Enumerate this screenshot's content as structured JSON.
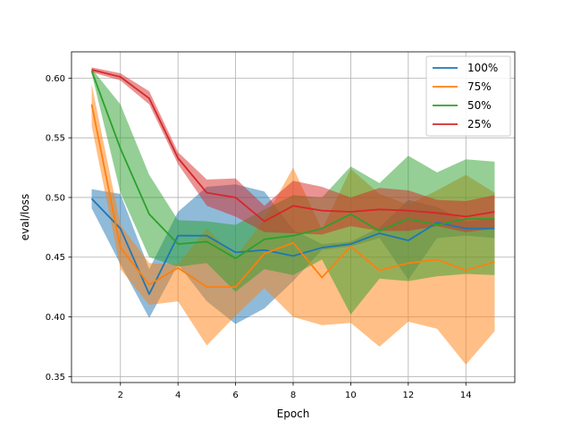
{
  "chart_data": {
    "type": "line",
    "title": "",
    "xlabel": "Epoch",
    "ylabel": "eval/loss",
    "xlim": [
      0.3,
      15.7
    ],
    "ylim": [
      0.345,
      0.622
    ],
    "xticks": [
      2,
      4,
      6,
      8,
      10,
      12,
      14
    ],
    "yticks": [
      0.35,
      0.4,
      0.45,
      0.5,
      0.55,
      0.6
    ],
    "xtick_labels": [
      "2",
      "4",
      "6",
      "8",
      "10",
      "12",
      "14"
    ],
    "ytick_labels": [
      "0.35",
      "0.40",
      "0.45",
      "0.50",
      "0.55",
      "0.60"
    ],
    "grid": true,
    "legend_position": "top-right",
    "x": [
      1,
      2,
      3,
      4,
      5,
      6,
      7,
      8,
      9,
      10,
      11,
      12,
      13,
      14,
      15
    ],
    "series": [
      {
        "name": "100%",
        "color": "#1f77b4",
        "values": [
          0.499,
          0.474,
          0.419,
          0.468,
          0.468,
          0.454,
          0.456,
          0.451,
          0.458,
          0.461,
          0.47,
          0.464,
          0.479,
          0.474,
          0.474
        ],
        "lower": [
          0.491,
          0.444,
          0.399,
          0.444,
          0.413,
          0.394,
          0.407,
          0.43,
          0.456,
          0.459,
          0.466,
          0.431,
          0.466,
          0.468,
          0.466
        ],
        "upper": [
          0.507,
          0.503,
          0.44,
          0.488,
          0.509,
          0.511,
          0.505,
          0.473,
          0.461,
          0.463,
          0.475,
          0.498,
          0.492,
          0.48,
          0.482
        ]
      },
      {
        "name": "75%",
        "color": "#ff7f0e",
        "values": [
          0.578,
          0.458,
          0.427,
          0.441,
          0.425,
          0.425,
          0.453,
          0.462,
          0.433,
          0.459,
          0.439,
          0.445,
          0.448,
          0.439,
          0.446
        ],
        "lower": [
          0.56,
          0.44,
          0.41,
          0.413,
          0.376,
          0.401,
          0.424,
          0.4,
          0.393,
          0.395,
          0.375,
          0.396,
          0.39,
          0.36,
          0.388
        ],
        "upper": [
          0.595,
          0.477,
          0.445,
          0.444,
          0.474,
          0.45,
          0.482,
          0.525,
          0.473,
          0.524,
          0.503,
          0.494,
          0.506,
          0.519,
          0.504
        ]
      },
      {
        "name": "50%",
        "color": "#2ca02c",
        "values": [
          0.606,
          0.541,
          0.486,
          0.461,
          0.463,
          0.449,
          0.465,
          0.468,
          0.474,
          0.486,
          0.472,
          0.482,
          0.477,
          0.482,
          0.482
        ],
        "lower": [
          0.604,
          0.504,
          0.45,
          0.442,
          0.445,
          0.421,
          0.44,
          0.435,
          0.448,
          0.402,
          0.432,
          0.43,
          0.434,
          0.436,
          0.435
        ],
        "upper": [
          0.608,
          0.578,
          0.519,
          0.481,
          0.48,
          0.477,
          0.49,
          0.502,
          0.5,
          0.526,
          0.512,
          0.535,
          0.521,
          0.532,
          0.53
        ]
      },
      {
        "name": "25%",
        "color": "#d62728",
        "values": [
          0.607,
          0.601,
          0.583,
          0.533,
          0.504,
          0.5,
          0.48,
          0.493,
          0.489,
          0.488,
          0.49,
          0.489,
          0.487,
          0.484,
          0.488
        ],
        "lower": [
          0.605,
          0.598,
          0.578,
          0.528,
          0.493,
          0.484,
          0.471,
          0.47,
          0.469,
          0.476,
          0.472,
          0.472,
          0.476,
          0.471,
          0.474
        ],
        "upper": [
          0.609,
          0.604,
          0.589,
          0.538,
          0.515,
          0.516,
          0.493,
          0.514,
          0.509,
          0.5,
          0.508,
          0.506,
          0.498,
          0.497,
          0.502
        ]
      }
    ]
  }
}
